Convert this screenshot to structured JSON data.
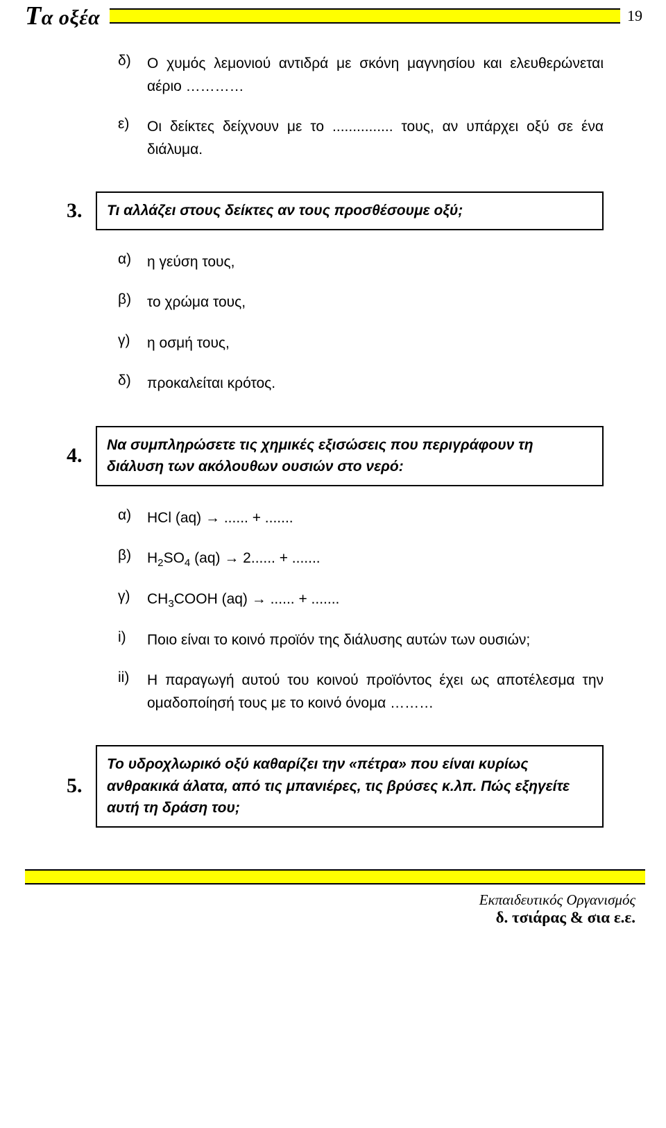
{
  "header": {
    "title_big": "Τ",
    "title_rest": "α οξέα",
    "page_number": "19"
  },
  "intro_items": [
    {
      "label": "δ)",
      "text": "Ο χυμός λεμονιού αντιδρά με σκόνη μαγνησίου και ελευθερώνεται αέριο …………"
    },
    {
      "label": "ε)",
      "text": "Οι δείκτες δείχνουν με το ............... τους, αν υπάρχει οξύ σε ένα διάλυμα."
    }
  ],
  "q3": {
    "num": "3.",
    "text": "Τι αλλάζει στους δείκτες αν τους προσθέσουμε οξύ;",
    "options": [
      {
        "label": "α)",
        "text": "η γεύση τους,"
      },
      {
        "label": "β)",
        "text": "το χρώμα τους,"
      },
      {
        "label": "γ)",
        "text": "η οσμή τους,"
      },
      {
        "label": "δ)",
        "text": "προκαλείται κρότος."
      }
    ]
  },
  "q4": {
    "num": "4.",
    "text": "Να συμπληρώσετε τις χημικές εξισώσεις που περιγράφουν τη διάλυση των ακόλουθων ουσιών στο νερό:",
    "eq_a": {
      "label": "α)",
      "pre": "HCl (aq) ",
      "arrow": "→",
      "post": " ...... + ......."
    },
    "eq_b": {
      "label": "β)",
      "pre_a": "H",
      "sub1": "2",
      "pre_b": "SO",
      "sub2": "4",
      "pre_c": " (aq) ",
      "arrow": "→",
      "post": " 2...... + ......."
    },
    "eq_c": {
      "label": "γ)",
      "pre_a": "CH",
      "sub1": "3",
      "pre_b": "COOH (aq) ",
      "arrow": "→",
      "post": " ...... + ......."
    },
    "sub_i": {
      "label": "i)",
      "text": "Ποιο είναι το κοινό προϊόν της διάλυσης αυτών των ουσιών;"
    },
    "sub_ii": {
      "label": "ii)",
      "text": "Η παραγωγή αυτού του κοινού προϊόντος έχει ως αποτέλεσμα την ομαδοποίησή τους με το κοινό όνομα ………"
    }
  },
  "q5": {
    "num": "5.",
    "text": "Το υδροχλωρικό οξύ καθαρίζει την «πέτρα» που είναι κυρίως ανθρακικά άλατα, από τις μπανιέρες, τις βρύσες κ.λπ. Πώς εξηγείτε αυτή τη δράση του;"
  },
  "footer": {
    "line1": "Εκπαιδευτικός Οργανισμός",
    "line2": "δ. τσιάρας & σια ε.ε."
  }
}
